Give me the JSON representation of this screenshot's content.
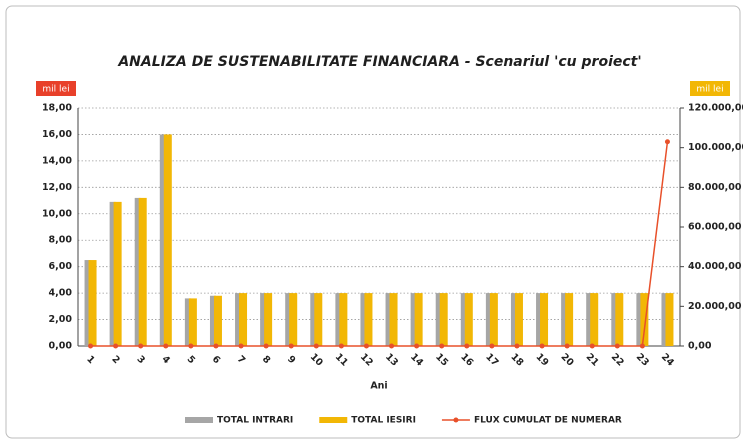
{
  "chart_data": {
    "type": "bar_line",
    "title": "ANALIZA DE SUSTENABILITATE FINANCIARA - Scenariul 'cu proiect'",
    "y_label": "mil lei",
    "y2_label": "mil lei",
    "x_label": "Ani",
    "categories": [
      "1",
      "2",
      "3",
      "4",
      "5",
      "6",
      "7",
      "8",
      "9",
      "10",
      "11",
      "12",
      "13",
      "14",
      "15",
      "16",
      "17",
      "18",
      "19",
      "20",
      "21",
      "22",
      "23",
      "24"
    ],
    "series": [
      {
        "name": "TOTAL INTRARI",
        "color": "#a6a6a6",
        "kind": "bar",
        "values": [
          6.5,
          10.9,
          11.2,
          16.0,
          3.6,
          3.8,
          4.0,
          4.0,
          4.0,
          4.0,
          4.0,
          4.0,
          4.0,
          4.0,
          4.0,
          4.0,
          4.0,
          4.0,
          4.0,
          4.0,
          4.0,
          4.0,
          4.0,
          4.0
        ]
      },
      {
        "name": "TOTAL IESIRI",
        "color": "#f2b705",
        "kind": "bar",
        "values": [
          6.5,
          10.9,
          11.2,
          16.0,
          3.6,
          3.8,
          4.0,
          4.0,
          4.0,
          4.0,
          4.0,
          4.0,
          4.0,
          4.0,
          4.0,
          4.0,
          4.0,
          4.0,
          4.0,
          4.0,
          4.0,
          4.0,
          4.0,
          4.0
        ]
      },
      {
        "name": "FLUX CUMULAT DE NUMERAR",
        "color": "#e8502a",
        "kind": "line",
        "axis": "y2",
        "values": [
          0,
          0,
          0,
          0,
          0,
          0,
          0,
          0,
          0,
          0,
          0,
          0,
          0,
          0,
          0,
          0,
          0,
          0,
          0,
          0,
          0,
          0,
          0,
          103000
        ]
      }
    ],
    "ylim": [
      0,
      18
    ],
    "yticks": [
      {
        "value": 0,
        "label": "0,00"
      },
      {
        "value": 2,
        "label": "2,00"
      },
      {
        "value": 4,
        "label": "4,00"
      },
      {
        "value": 6,
        "label": "6,00"
      },
      {
        "value": 8,
        "label": "8,00"
      },
      {
        "value": 10,
        "label": "10,00"
      },
      {
        "value": 12,
        "label": "12,00"
      },
      {
        "value": 14,
        "label": "14,00"
      },
      {
        "value": 16,
        "label": "16,00"
      },
      {
        "value": 18,
        "label": "18,00"
      }
    ],
    "y2lim": [
      0,
      120000
    ],
    "y2ticks": [
      {
        "value": 0,
        "label": "0,00"
      },
      {
        "value": 20000,
        "label": "20.000,00"
      },
      {
        "value": 40000,
        "label": "40.000,00"
      },
      {
        "value": 60000,
        "label": "60.000,00"
      },
      {
        "value": 80000,
        "label": "80.000,00"
      },
      {
        "value": 100000,
        "label": "100.000,00"
      },
      {
        "value": 120000,
        "label": "120.000,00"
      }
    ],
    "grid": true
  }
}
